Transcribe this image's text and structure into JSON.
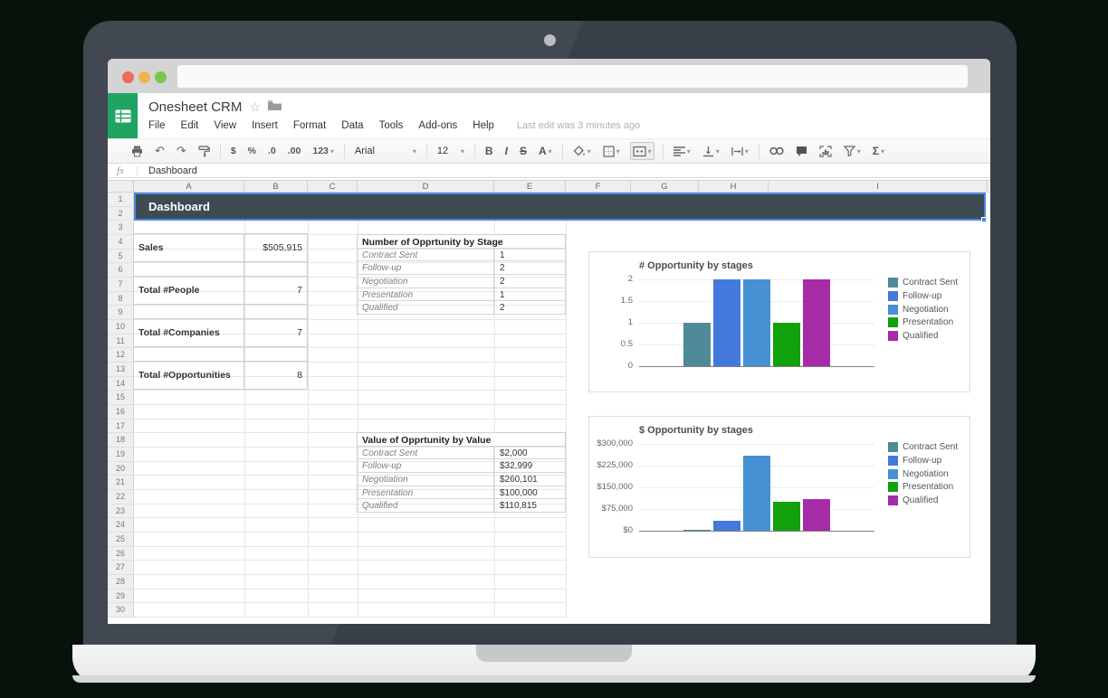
{
  "app": {
    "title": "Onesheet CRM",
    "menu_items": [
      "File",
      "Edit",
      "View",
      "Insert",
      "Format",
      "Data",
      "Tools",
      "Add-ons",
      "Help"
    ],
    "last_edit": "Last edit was 3 minutes ago"
  },
  "toolbar": {
    "currency": "$",
    "percent": "%",
    "decrease_decimal": ".0",
    "increase_decimal": ".00",
    "more_formats": "123",
    "font_name": "Arial",
    "font_size": "12",
    "bold": "B",
    "italic": "I",
    "strikethrough": "S",
    "text_color": "A",
    "functions": "Σ"
  },
  "icons": {
    "undo": "↶",
    "redo": "↷",
    "caret": "▾",
    "star": "☆"
  },
  "formula_bar": {
    "fx": "fx",
    "value": "Dashboard"
  },
  "grid": {
    "column_headers": [
      "A",
      "B",
      "C",
      "D",
      "E",
      "F",
      "G",
      "H",
      "I"
    ],
    "row_count": 30,
    "title_cell": "Dashboard",
    "stats": [
      {
        "label": "Sales",
        "value": "$505,915"
      },
      {
        "label": "Total #People",
        "value": "7"
      },
      {
        "label": "Total #Companies",
        "value": "7"
      },
      {
        "label": "Total #Opportunities",
        "value": "8"
      }
    ],
    "stage_table": {
      "header": "Number of Opprtunity by Stage",
      "rows": [
        [
          "Contract Sent",
          "1"
        ],
        [
          "Follow-up",
          "2"
        ],
        [
          "Negotiation",
          "2"
        ],
        [
          "Presentation",
          "1"
        ],
        [
          "Qualified",
          "2"
        ]
      ]
    },
    "value_table": {
      "header": "Value of Opprtunity by Value",
      "rows": [
        [
          "Contract Sent",
          "$2,000"
        ],
        [
          "Follow-up",
          "$32,999"
        ],
        [
          "Negotiation",
          "$260,101"
        ],
        [
          "Presentation",
          "$100,000"
        ],
        [
          "Qualified",
          "$110,815"
        ]
      ]
    }
  },
  "chart_data": [
    {
      "type": "bar",
      "title": "# Opportunity by stages",
      "categories": [
        "Contract Sent",
        "Follow-up",
        "Negotiation",
        "Presentation",
        "Qualified"
      ],
      "values": [
        1,
        2,
        2,
        1,
        2
      ],
      "colors": [
        "#4e8a98",
        "#4479dc",
        "#4690d4",
        "#11a10c",
        "#a62ba6"
      ],
      "xlabel": "",
      "ylabel": "",
      "ylim": [
        0,
        2
      ],
      "yticks": [
        "0",
        "0.5",
        "1",
        "1.5",
        "2"
      ],
      "grid": true,
      "legend_position": "right"
    },
    {
      "type": "bar",
      "title": "$ Opportunity by stages",
      "categories": [
        "Contract Sent",
        "Follow-up",
        "Negotiation",
        "Presentation",
        "Qualified"
      ],
      "values": [
        2000,
        32999,
        260101,
        100000,
        110815
      ],
      "colors": [
        "#4e8a98",
        "#4479dc",
        "#4690d4",
        "#11a10c",
        "#a62ba6"
      ],
      "xlabel": "",
      "ylabel": "",
      "ylim": [
        0,
        300000
      ],
      "yticks": [
        "$0",
        "$75,000",
        "$150,000",
        "$225,000",
        "$300,000"
      ],
      "grid": true,
      "legend_position": "right"
    }
  ],
  "colors": {
    "selection": "#4a86e8",
    "dashboard_fill": "#3d4b53",
    "logo_green": "#1fa463",
    "traffic_red": "#ed6a5e",
    "traffic_yellow": "#f0b24e",
    "traffic_green": "#7fc349"
  }
}
